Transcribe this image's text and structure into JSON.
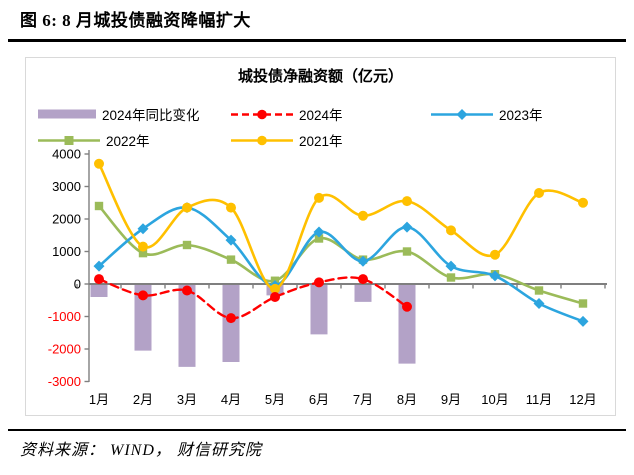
{
  "header": {
    "title": "图 6: 8 月城投债融资降幅扩大"
  },
  "footer": {
    "source": "资料来源： WIND， 财信研究院"
  },
  "chart": {
    "title": "城投债净融资额（亿元）",
    "legend": [
      {
        "label": "2024年同比变化",
        "marker": "bar",
        "color": "#B3A2C7"
      },
      {
        "label": "2024年",
        "marker": "dashed-circle",
        "color": "#FF0000"
      },
      {
        "label": "2023年",
        "marker": "diamond",
        "color": "#2CA5DF"
      },
      {
        "label": "2022年",
        "marker": "square",
        "color": "#9BBB59"
      },
      {
        "label": "2021年",
        "marker": "circle",
        "color": "#FFC000"
      }
    ]
  },
  "chart_data": {
    "type": "combo-bar-line",
    "title": "城投债净融资额（亿元）",
    "categories": [
      "1月",
      "2月",
      "3月",
      "4月",
      "5月",
      "6月",
      "7月",
      "8月",
      "9月",
      "10月",
      "11月",
      "12月"
    ],
    "bar_series": {
      "name": "2024年同比变化",
      "color": "#B3A2C7",
      "values": [
        -400,
        -2050,
        -2550,
        -2400,
        -350,
        -1550,
        -550,
        -2450
      ]
    },
    "line_series": [
      {
        "name": "2024年",
        "color": "#FF0000",
        "dashed": true,
        "marker": "circle",
        "values": [
          150,
          -350,
          -200,
          -1050,
          -400,
          50,
          150,
          -700
        ]
      },
      {
        "name": "2023年",
        "color": "#2CA5DF",
        "dashed": false,
        "marker": "diamond",
        "values": [
          550,
          1700,
          2350,
          1350,
          -50,
          1600,
          700,
          1750,
          550,
          250,
          -600,
          -1150
        ]
      },
      {
        "name": "2022年",
        "color": "#9BBB59",
        "dashed": false,
        "marker": "square",
        "values": [
          2400,
          950,
          1200,
          750,
          100,
          1400,
          750,
          1000,
          200,
          300,
          -200,
          -600
        ]
      },
      {
        "name": "2021年",
        "color": "#FFC000",
        "dashed": false,
        "marker": "circle",
        "values": [
          3700,
          1150,
          2350,
          2350,
          -150,
          2650,
          2100,
          2550,
          1650,
          900,
          2800,
          2500
        ]
      }
    ],
    "ylim": [
      -3000,
      4000
    ],
    "yticks": [
      4000,
      3000,
      2000,
      1000,
      0,
      -1000,
      -2000,
      -3000
    ],
    "tick_color": "#000000",
    "negative_tick_color": "#FF0000",
    "axis_color": "#7F7F7F",
    "grid": false,
    "legend_position": "top"
  }
}
